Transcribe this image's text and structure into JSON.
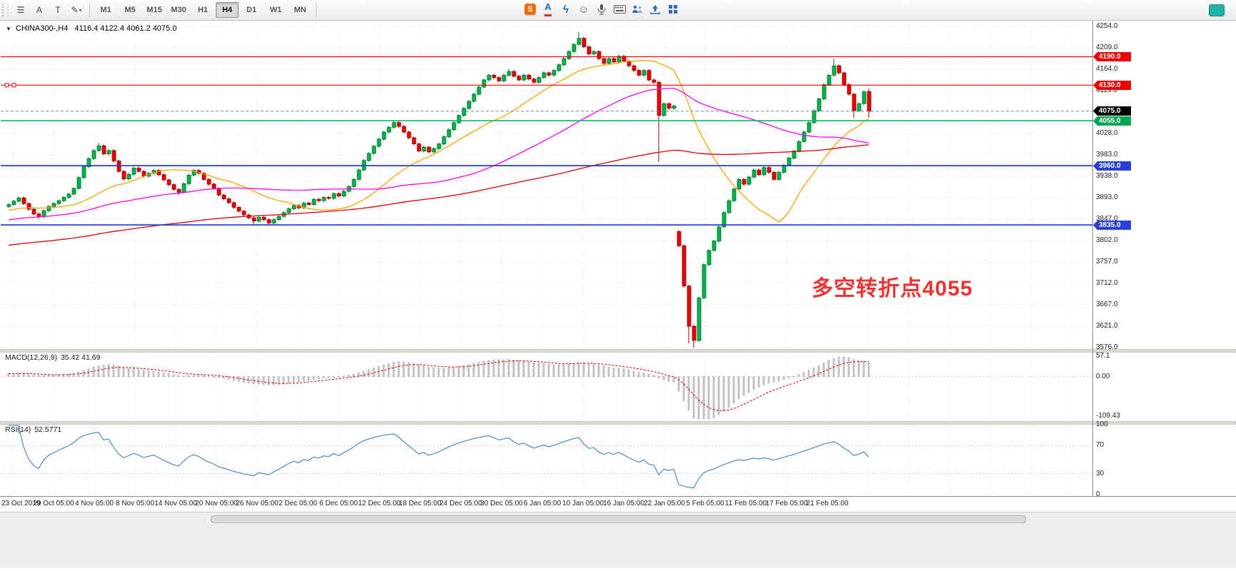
{
  "toolbar": {
    "tools": [
      {
        "name": "chart-list-icon",
        "glyph": "☰"
      },
      {
        "name": "cursor-a-icon",
        "glyph": "A"
      },
      {
        "name": "text-tool-icon",
        "glyph": "T"
      },
      {
        "name": "draw-tool-icon",
        "glyph": "✎"
      }
    ],
    "caret_glyph": "▾",
    "timeframes": [
      "M1",
      "M5",
      "M15",
      "M30",
      "H1",
      "H4",
      "D1",
      "W1",
      "MN"
    ],
    "active_timeframe": "H4",
    "right_icons": [
      {
        "name": "sina-share-icon",
        "glyph": "S",
        "type": "sina"
      },
      {
        "name": "font-color-icon",
        "glyph": "A",
        "type": "fontA"
      },
      {
        "name": "flash-icon",
        "glyph": "ϟ",
        "type": "flash"
      },
      {
        "name": "smiley-icon",
        "glyph": "☺",
        "type": "smile"
      },
      {
        "name": "microphone-icon",
        "glyph": "",
        "type": "svg-mic"
      },
      {
        "name": "keyboard-icon",
        "glyph": "",
        "type": "svg-kbd"
      },
      {
        "name": "screen-share-icon",
        "glyph": "",
        "type": "svg-people"
      },
      {
        "name": "upload-icon",
        "glyph": "",
        "type": "svg-up"
      },
      {
        "name": "apps-grid-icon",
        "glyph": "",
        "type": "svg-grid"
      }
    ]
  },
  "chart": {
    "title_symbol": "CHINA300-,H4",
    "title_ohlc": "4116.4 4122.4 4061.2 4075.0",
    "annotation": {
      "text": "多空转折点4055",
      "color": "#ee3333"
    },
    "axis_labels": [
      "4254.0",
      "4209.0",
      "4164.0",
      "4119.0",
      "4028.0",
      "3983.0",
      "3938.0",
      "3893.0",
      "3847.0",
      "3802.0",
      "3757.0",
      "3712.0",
      "3667.0",
      "3621.0",
      "3576.0"
    ],
    "price_badges": [
      {
        "label": "4190.0",
        "price": 4190,
        "color": "#ee0000"
      },
      {
        "label": "4130.0",
        "price": 4130,
        "color": "#ee0000"
      },
      {
        "label": "4075.0",
        "price": 4075,
        "color": "#000000"
      },
      {
        "label": "4055.0",
        "price": 4055,
        "color": "#00a651"
      },
      {
        "label": "3960.0",
        "price": 3960,
        "color": "#2741d6"
      },
      {
        "label": "3835.0",
        "price": 3835,
        "color": "#2741d6"
      }
    ],
    "hlines": [
      {
        "price": 4190,
        "color": "#ee0000",
        "w": 1.2,
        "dash": ""
      },
      {
        "price": 4130,
        "color": "#ee0000",
        "w": 1.2,
        "dash": ""
      },
      {
        "price": 4075,
        "color": "#7188a6",
        "w": 1,
        "dash": "4,3"
      },
      {
        "price": 4055,
        "color": "#00c060",
        "w": 1.6,
        "dash": ""
      },
      {
        "price": 3960,
        "color": "#2741d6",
        "w": 1.8,
        "dash": ""
      },
      {
        "price": 3835,
        "color": "#2741d6",
        "w": 1.8,
        "dash": ""
      }
    ],
    "macd_label": "MACD(12,26,9)",
    "macd_values": "35.42 41.69",
    "rsi_label": "RSI(14)",
    "rsi_value": "52.5771"
  },
  "chart_data": {
    "type": "candlestick",
    "title": "CHINA300-,H4",
    "symbol": "CHINA300-",
    "timeframe": "H4",
    "ohlc_display": {
      "open": 4116.4,
      "high": 4122.4,
      "low": 4061.2,
      "close": 4075.0
    },
    "ylim": [
      3576,
      4254
    ],
    "grid": "dotted",
    "x_labels": [
      "23 Oct 2019",
      "29 Oct 05:00",
      "4 Nov 05:00",
      "8 Nov 05:00",
      "14 Nov 05:00",
      "20 Nov 05:00",
      "26 Nov 05:00",
      "2 Dec 05:00",
      "6 Dec 05:00",
      "12 Dec 05:00",
      "18 Dec 05:00",
      "24 Dec 05:00",
      "30 Dec 05:00",
      "6 Jan 05:00",
      "10 Jan 05:00",
      "16 Jan 05:00",
      "22 Jan 05:00",
      "5 Feb 05:00",
      "11 Feb 05:00",
      "17 Feb 05:00",
      "21 Feb 05:00"
    ],
    "horizontal_levels": [
      4190,
      4130,
      4075,
      4055,
      3960,
      3835
    ],
    "moving_averages": [
      {
        "name": "ma-fast",
        "period": 21,
        "color": "#ffa200"
      },
      {
        "name": "ma-mid",
        "period": 55,
        "color": "#ff00ff"
      },
      {
        "name": "ma-slow",
        "period": 144,
        "color": "#e00000"
      }
    ],
    "indicators": [
      {
        "type": "macd",
        "label": "MACD(12,26,9)",
        "values_label": "35.42 41.69",
        "params": [
          12,
          26,
          9
        ],
        "scale_labels": [
          {
            "text": "57.1",
            "value": 57.1
          },
          {
            "text": "0.00",
            "value": 0
          },
          {
            "text": "-109.43",
            "value": -109.43
          }
        ],
        "ylim": [
          -120,
          65
        ]
      },
      {
        "type": "rsi",
        "label": "RSI(14)",
        "value_label": "52.5771",
        "period": 14,
        "scale_labels": [
          {
            "text": "100",
            "value": 100
          },
          {
            "text": "70",
            "value": 70
          },
          {
            "text": "30",
            "value": 30
          },
          {
            "text": "0",
            "value": 0
          }
        ],
        "levels": [
          70,
          30
        ],
        "ylim": [
          0,
          100
        ]
      }
    ],
    "candles": [
      [
        3874,
        3881,
        3871,
        3878
      ],
      [
        3878,
        3888,
        3875,
        3885
      ],
      [
        3885,
        3895,
        3882,
        3892
      ],
      [
        3892,
        3895,
        3877,
        3880
      ],
      [
        3880,
        3883,
        3865,
        3868
      ],
      [
        3868,
        3871,
        3855,
        3858
      ],
      [
        3858,
        3861,
        3848,
        3852
      ],
      [
        3852,
        3868,
        3849,
        3865
      ],
      [
        3865,
        3877,
        3862,
        3874
      ],
      [
        3874,
        3883,
        3871,
        3880
      ],
      [
        3880,
        3889,
        3877,
        3886
      ],
      [
        3886,
        3896,
        3883,
        3893
      ],
      [
        3893,
        3903,
        3890,
        3900
      ],
      [
        3900,
        3915,
        3897,
        3912
      ],
      [
        3912,
        3938,
        3909,
        3935
      ],
      [
        3935,
        3961,
        3932,
        3958
      ],
      [
        3958,
        3978,
        3955,
        3975
      ],
      [
        3975,
        3995,
        3972,
        3992
      ],
      [
        3992,
        4008,
        3989,
        4002
      ],
      [
        4002,
        4005,
        3982,
        3985
      ],
      [
        3985,
        3995,
        3982,
        3992
      ],
      [
        3992,
        3995,
        3967,
        3970
      ],
      [
        3970,
        3973,
        3945,
        3948
      ],
      [
        3948,
        3951,
        3929,
        3932
      ],
      [
        3932,
        3945,
        3929,
        3942
      ],
      [
        3942,
        3958,
        3939,
        3955
      ],
      [
        3955,
        3958,
        3945,
        3948
      ],
      [
        3948,
        3951,
        3935,
        3938
      ],
      [
        3938,
        3947,
        3935,
        3944
      ],
      [
        3944,
        3953,
        3941,
        3950
      ],
      [
        3950,
        3953,
        3938,
        3941
      ],
      [
        3941,
        3944,
        3927,
        3930
      ],
      [
        3930,
        3933,
        3917,
        3920
      ],
      [
        3920,
        3923,
        3907,
        3910
      ],
      [
        3910,
        3913,
        3898,
        3904
      ],
      [
        3904,
        3925,
        3901,
        3922
      ],
      [
        3922,
        3943,
        3919,
        3940
      ],
      [
        3940,
        3953,
        3937,
        3950
      ],
      [
        3950,
        3953,
        3941,
        3944
      ],
      [
        3944,
        3947,
        3928,
        3931
      ],
      [
        3931,
        3934,
        3918,
        3921
      ],
      [
        3921,
        3924,
        3909,
        3912
      ],
      [
        3912,
        3915,
        3895,
        3898
      ],
      [
        3898,
        3901,
        3887,
        3890
      ],
      [
        3890,
        3893,
        3879,
        3882
      ],
      [
        3882,
        3885,
        3869,
        3872
      ],
      [
        3872,
        3875,
        3861,
        3864
      ],
      [
        3864,
        3867,
        3853,
        3856
      ],
      [
        3856,
        3859,
        3847,
        3850
      ],
      [
        3850,
        3853,
        3836,
        3843
      ],
      [
        3843,
        3854,
        3840,
        3851
      ],
      [
        3851,
        3854,
        3843,
        3846
      ],
      [
        3846,
        3849,
        3835,
        3839
      ],
      [
        3839,
        3849,
        3836,
        3846
      ],
      [
        3846,
        3856,
        3843,
        3853
      ],
      [
        3853,
        3864,
        3850,
        3861
      ],
      [
        3861,
        3872,
        3858,
        3869
      ],
      [
        3869,
        3879,
        3866,
        3876
      ],
      [
        3876,
        3879,
        3868,
        3871
      ],
      [
        3871,
        3884,
        3868,
        3881
      ],
      [
        3881,
        3884,
        3875,
        3878
      ],
      [
        3878,
        3892,
        3875,
        3889
      ],
      [
        3889,
        3892,
        3883,
        3886
      ],
      [
        3886,
        3896,
        3883,
        3893
      ],
      [
        3893,
        3896,
        3888,
        3891
      ],
      [
        3891,
        3904,
        3888,
        3901
      ],
      [
        3901,
        3904,
        3893,
        3896
      ],
      [
        3896,
        3909,
        3893,
        3906
      ],
      [
        3906,
        3919,
        3903,
        3916
      ],
      [
        3916,
        3934,
        3913,
        3931
      ],
      [
        3931,
        3954,
        3928,
        3951
      ],
      [
        3951,
        3974,
        3948,
        3971
      ],
      [
        3971,
        3989,
        3968,
        3986
      ],
      [
        3986,
        4004,
        3983,
        4001
      ],
      [
        4001,
        4019,
        3998,
        4016
      ],
      [
        4016,
        4034,
        4013,
        4031
      ],
      [
        4031,
        4044,
        4028,
        4041
      ],
      [
        4041,
        4056,
        4038,
        4051
      ],
      [
        4051,
        4054,
        4040,
        4043
      ],
      [
        4043,
        4046,
        4028,
        4031
      ],
      [
        4031,
        4034,
        4016,
        4019
      ],
      [
        4019,
        4022,
        4003,
        4006
      ],
      [
        4006,
        4009,
        3988,
        3991
      ],
      [
        3991,
        4002,
        3988,
        3999
      ],
      [
        3999,
        4002,
        3986,
        3989
      ],
      [
        3989,
        3999,
        3986,
        3996
      ],
      [
        3996,
        4009,
        3993,
        4006
      ],
      [
        4006,
        4024,
        4003,
        4021
      ],
      [
        4021,
        4039,
        4018,
        4036
      ],
      [
        4036,
        4054,
        4033,
        4051
      ],
      [
        4051,
        4069,
        4048,
        4066
      ],
      [
        4066,
        4084,
        4063,
        4081
      ],
      [
        4081,
        4099,
        4078,
        4096
      ],
      [
        4096,
        4114,
        4093,
        4111
      ],
      [
        4111,
        4129,
        4108,
        4126
      ],
      [
        4126,
        4144,
        4123,
        4141
      ],
      [
        4141,
        4154,
        4138,
        4151
      ],
      [
        4151,
        4154,
        4143,
        4146
      ],
      [
        4146,
        4149,
        4136,
        4139
      ],
      [
        4139,
        4154,
        4136,
        4151
      ],
      [
        4151,
        4164,
        4148,
        4159
      ],
      [
        4159,
        4162,
        4146,
        4149
      ],
      [
        4149,
        4152,
        4138,
        4141
      ],
      [
        4141,
        4154,
        4138,
        4151
      ],
      [
        4151,
        4154,
        4140,
        4143
      ],
      [
        4143,
        4146,
        4133,
        4136
      ],
      [
        4136,
        4149,
        4133,
        4146
      ],
      [
        4146,
        4159,
        4143,
        4156
      ],
      [
        4156,
        4159,
        4148,
        4151
      ],
      [
        4151,
        4164,
        4148,
        4161
      ],
      [
        4161,
        4176,
        4158,
        4173
      ],
      [
        4173,
        4189,
        4170,
        4186
      ],
      [
        4186,
        4204,
        4183,
        4201
      ],
      [
        4201,
        4219,
        4198,
        4216
      ],
      [
        4216,
        4242,
        4213,
        4229
      ],
      [
        4229,
        4232,
        4208,
        4211
      ],
      [
        4211,
        4214,
        4193,
        4196
      ],
      [
        4196,
        4204,
        4193,
        4201
      ],
      [
        4201,
        4204,
        4183,
        4186
      ],
      [
        4186,
        4189,
        4173,
        4176
      ],
      [
        4176,
        4189,
        4173,
        4186
      ],
      [
        4186,
        4189,
        4176,
        4179
      ],
      [
        4179,
        4194,
        4176,
        4191
      ],
      [
        4191,
        4194,
        4178,
        4181
      ],
      [
        4181,
        4184,
        4168,
        4171
      ],
      [
        4171,
        4174,
        4158,
        4161
      ],
      [
        4161,
        4164,
        4148,
        4151
      ],
      [
        4151,
        4164,
        4148,
        4161
      ],
      [
        4161,
        4164,
        4138,
        4141
      ],
      [
        4141,
        4144,
        4133,
        4136
      ],
      [
        4136,
        4139,
        3968,
        4066
      ],
      [
        4066,
        4094,
        4063,
        4091
      ],
      [
        4091,
        4094,
        4078,
        4081
      ],
      [
        4081,
        4089,
        4078,
        4086
      ],
      [
        3821,
        3824,
        3788,
        3791
      ],
      [
        3791,
        3794,
        3703,
        3706
      ],
      [
        3706,
        3709,
        3585,
        3621
      ],
      [
        3621,
        3624,
        3576,
        3591
      ],
      [
        3591,
        3684,
        3588,
        3681
      ],
      [
        3681,
        3754,
        3678,
        3751
      ],
      [
        3751,
        3784,
        3748,
        3781
      ],
      [
        3781,
        3804,
        3778,
        3801
      ],
      [
        3801,
        3834,
        3798,
        3831
      ],
      [
        3831,
        3864,
        3828,
        3861
      ],
      [
        3861,
        3889,
        3858,
        3886
      ],
      [
        3886,
        3914,
        3883,
        3911
      ],
      [
        3911,
        3934,
        3908,
        3931
      ],
      [
        3931,
        3934,
        3918,
        3921
      ],
      [
        3921,
        3939,
        3918,
        3936
      ],
      [
        3936,
        3954,
        3933,
        3951
      ],
      [
        3951,
        3954,
        3938,
        3941
      ],
      [
        3941,
        3959,
        3938,
        3956
      ],
      [
        3956,
        3959,
        3943,
        3946
      ],
      [
        3946,
        3949,
        3928,
        3931
      ],
      [
        3931,
        3949,
        3928,
        3946
      ],
      [
        3946,
        3964,
        3943,
        3961
      ],
      [
        3961,
        3979,
        3958,
        3976
      ],
      [
        3976,
        3994,
        3973,
        3991
      ],
      [
        3991,
        4014,
        3988,
        4011
      ],
      [
        4011,
        4034,
        4008,
        4031
      ],
      [
        4031,
        4054,
        4028,
        4051
      ],
      [
        4051,
        4079,
        4048,
        4076
      ],
      [
        4076,
        4104,
        4073,
        4101
      ],
      [
        4101,
        4134,
        4098,
        4131
      ],
      [
        4131,
        4154,
        4128,
        4151
      ],
      [
        4151,
        4186,
        4148,
        4171
      ],
      [
        4171,
        4174,
        4153,
        4156
      ],
      [
        4156,
        4159,
        4128,
        4131
      ],
      [
        4131,
        4134,
        4108,
        4111
      ],
      [
        4111,
        4114,
        4061,
        4076
      ],
      [
        4076,
        4094,
        4073,
        4091
      ],
      [
        4091,
        4119,
        4088,
        4116
      ],
      [
        4116.4,
        4122.4,
        4061.2,
        4075
      ]
    ]
  }
}
